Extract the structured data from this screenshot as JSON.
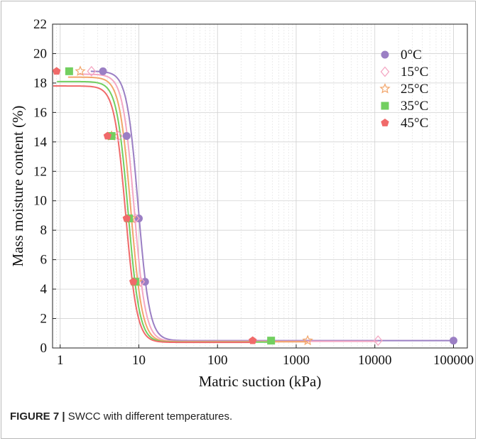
{
  "caption": {
    "label": "FIGURE 7 |",
    "text": " SWCC with different temperatures."
  },
  "chart_data": {
    "type": "scatter",
    "xlabel": "Matric suction (kPa)",
    "ylabel": "Mass moisture content (%)",
    "x_scale": "log",
    "xlim": [
      0.8,
      150000
    ],
    "ylim": [
      0,
      22
    ],
    "x_ticks": [
      1,
      10,
      100,
      1000,
      10000,
      100000
    ],
    "x_tick_labels": [
      "1",
      "10",
      "100",
      "1000",
      "10000",
      "100000"
    ],
    "y_ticks": [
      0,
      2,
      4,
      6,
      8,
      10,
      12,
      14,
      16,
      18,
      20,
      22
    ],
    "y_tick_labels": [
      "0",
      "2",
      "4",
      "6",
      "8",
      "10",
      "12",
      "14",
      "16",
      "18",
      "20",
      "22"
    ],
    "grid": true,
    "legend_position": "top-right",
    "series": [
      {
        "name": "0°C",
        "color": "#9b7fc4",
        "marker": "circle",
        "points": [
          [
            3.5,
            18.8
          ],
          [
            7,
            14.4
          ],
          [
            10,
            8.8
          ],
          [
            12,
            4.5
          ],
          [
            100000,
            0.5
          ]
        ],
        "curve": {
          "theta_s": 18.8,
          "theta_r": 0.5,
          "x50": 9.8,
          "n": 6
        }
      },
      {
        "name": "15°C",
        "color": "#f4a7c3",
        "marker": "diamond",
        "points": [
          [
            2.5,
            18.8
          ],
          [
            5.5,
            14.4
          ],
          [
            9,
            8.8
          ],
          [
            10.5,
            4.5
          ],
          [
            11000,
            0.5
          ]
        ],
        "curve": {
          "theta_s": 18.6,
          "theta_r": 0.45,
          "x50": 8.7,
          "n": 6
        }
      },
      {
        "name": "25°C",
        "color": "#f2a56a",
        "marker": "star",
        "points": [
          [
            1.8,
            18.8
          ],
          [
            4.5,
            14.4
          ],
          [
            8,
            8.8
          ],
          [
            9.5,
            4.5
          ],
          [
            1400,
            0.5
          ]
        ],
        "curve": {
          "theta_s": 18.4,
          "theta_r": 0.42,
          "x50": 7.9,
          "n": 6
        }
      },
      {
        "name": "35°C",
        "color": "#72cf60",
        "marker": "square",
        "points": [
          [
            1.3,
            18.8
          ],
          [
            4.5,
            14.4
          ],
          [
            7.5,
            8.8
          ],
          [
            9,
            4.5
          ],
          [
            480,
            0.5
          ]
        ],
        "curve": {
          "theta_s": 18.1,
          "theta_r": 0.4,
          "x50": 7.3,
          "n": 6
        }
      },
      {
        "name": "45°C",
        "color": "#f06a6a",
        "marker": "pentagon",
        "points": [
          [
            0.9,
            18.8
          ],
          [
            4,
            14.4
          ],
          [
            7,
            8.8
          ],
          [
            8.5,
            4.5
          ],
          [
            280,
            0.5
          ]
        ],
        "curve": {
          "theta_s": 17.8,
          "theta_r": 0.38,
          "x50": 6.8,
          "n": 6
        }
      }
    ]
  }
}
